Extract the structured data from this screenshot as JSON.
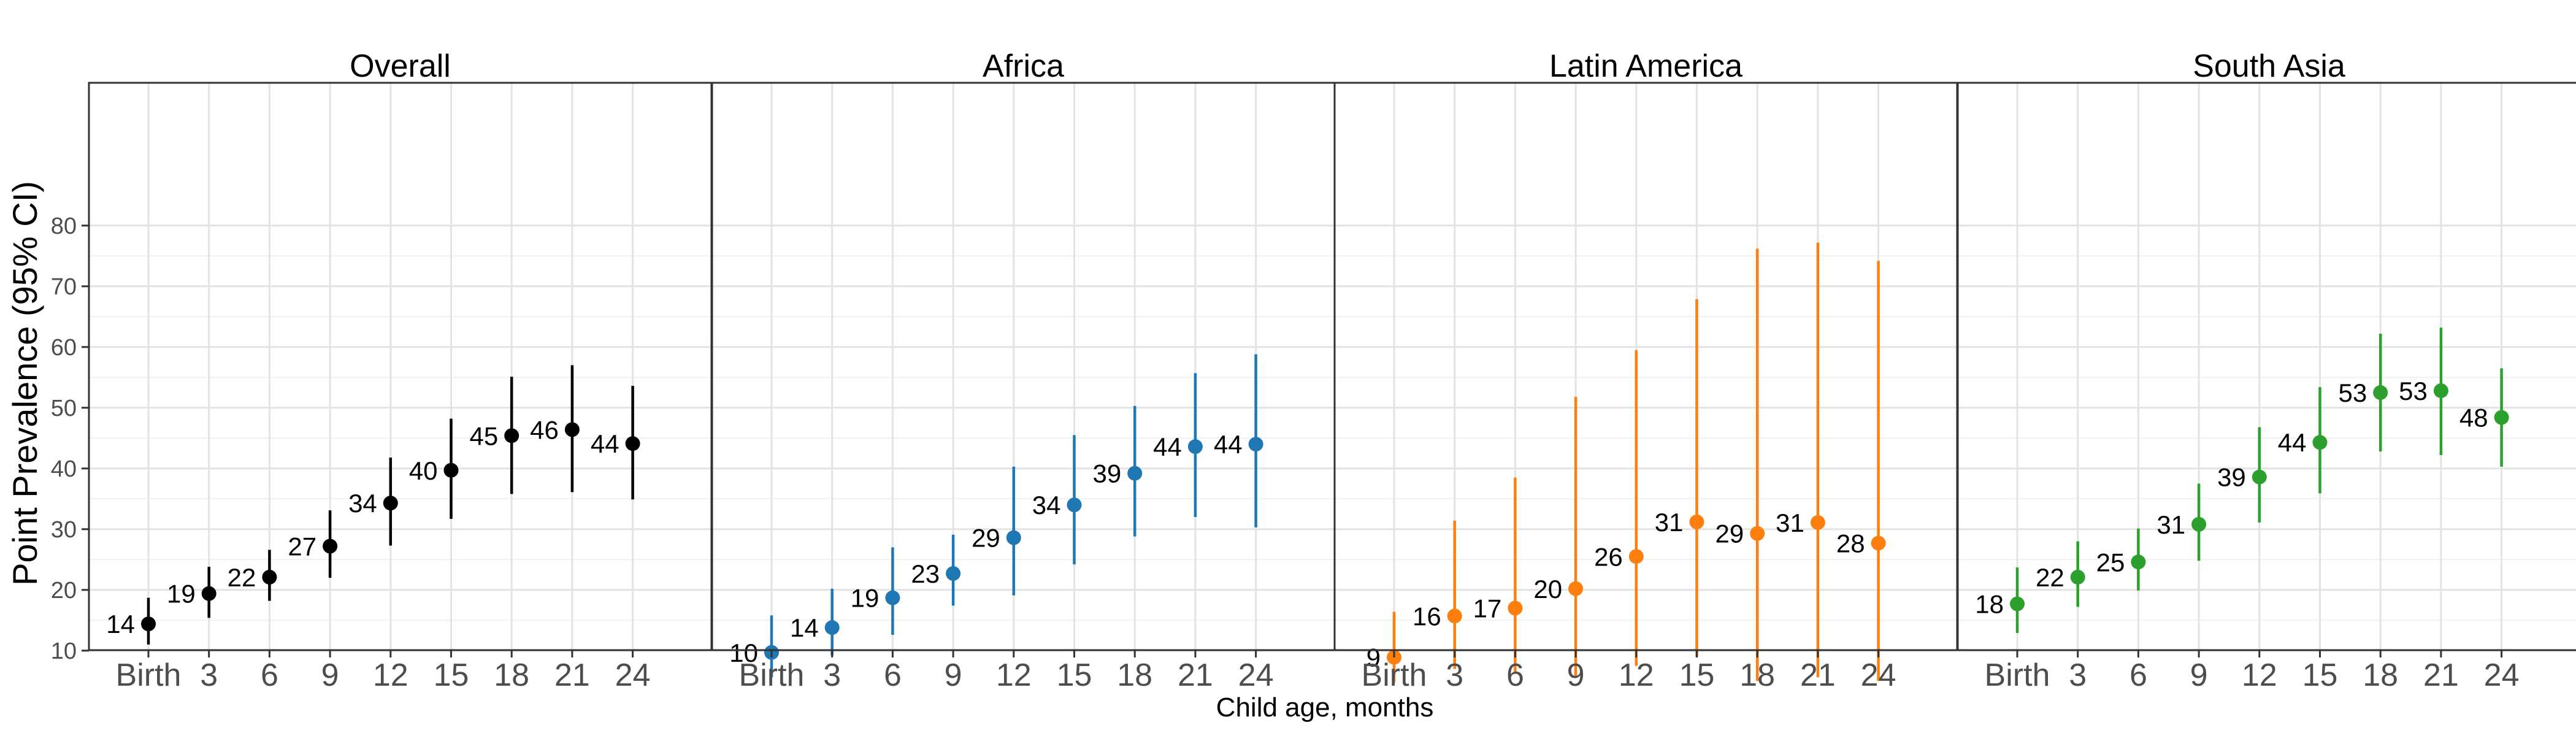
{
  "figure": {
    "ylabel": "Point Prevalence (95% CI)",
    "xlabel": "Child age, months"
  },
  "chart_data": [
    {
      "type": "scatter",
      "title": "Overall",
      "color": "#000000",
      "categories": [
        "Birth",
        "3",
        "6",
        "9",
        "12",
        "15",
        "18",
        "21",
        "24"
      ],
      "values": [
        14.4,
        19.4,
        22.1,
        27.2,
        34.3,
        39.7,
        45.4,
        46.4,
        44.1
      ],
      "ci_low": [
        11.0,
        15.4,
        18.2,
        22.0,
        27.3,
        31.7,
        35.8,
        36.1,
        34.9
      ],
      "ci_high": [
        18.7,
        23.8,
        26.6,
        33.1,
        41.8,
        48.2,
        55.1,
        57.0,
        53.6
      ],
      "data_labels": [
        "14",
        "19",
        "22",
        "27",
        "34",
        "40",
        "45",
        "46",
        "44"
      ],
      "ylim": [
        1,
        81
      ],
      "yticks": [
        10,
        20,
        30,
        40,
        50,
        60,
        70,
        80
      ],
      "grid": true
    },
    {
      "type": "scatter",
      "title": "Africa",
      "color": "#1F77B4",
      "categories": [
        "Birth",
        "3",
        "6",
        "9",
        "12",
        "15",
        "18",
        "21",
        "24"
      ],
      "values": [
        9.7,
        13.8,
        18.7,
        22.7,
        28.6,
        34.0,
        39.2,
        43.6,
        44.0
      ],
      "ci_low": [
        5.6,
        9.2,
        12.6,
        17.4,
        19.1,
        24.2,
        28.8,
        32.0,
        30.3
      ],
      "ci_high": [
        15.8,
        20.2,
        27.0,
        29.1,
        40.3,
        45.5,
        50.3,
        55.7,
        58.8
      ],
      "data_labels": [
        "10",
        "14",
        "19",
        "23",
        "29",
        "34",
        "39",
        "44",
        "44"
      ],
      "ylim": [
        1,
        81
      ],
      "yticks": [
        10,
        20,
        30,
        40,
        50,
        60,
        70,
        80
      ],
      "grid": true
    },
    {
      "type": "scatter",
      "title": "Latin America",
      "color": "#FF7F0E",
      "categories": [
        "Birth",
        "3",
        "6",
        "9",
        "12",
        "15",
        "18",
        "21",
        "24"
      ],
      "values": [
        8.9,
        15.7,
        17.0,
        20.2,
        25.5,
        31.2,
        29.3,
        31.1,
        27.7
      ],
      "ci_low": [
        4.8,
        7.0,
        6.2,
        5.6,
        7.5,
        9.0,
        5.0,
        5.6,
        5.0
      ],
      "ci_high": [
        16.4,
        31.4,
        38.5,
        51.8,
        59.5,
        67.9,
        76.2,
        77.2,
        74.2
      ],
      "data_labels": [
        "9",
        "16",
        "17",
        "20",
        "26",
        "31",
        "29",
        "31",
        "28"
      ],
      "ylim": [
        1,
        81
      ],
      "yticks": [
        10,
        20,
        30,
        40,
        50,
        60,
        70,
        80
      ],
      "grid": true
    },
    {
      "type": "scatter",
      "title": "South Asia",
      "color": "#2CA02C",
      "categories": [
        "Birth",
        "3",
        "6",
        "9",
        "12",
        "15",
        "18",
        "21",
        "24"
      ],
      "values": [
        17.7,
        22.1,
        24.6,
        30.8,
        38.6,
        44.3,
        52.5,
        52.8,
        48.4
      ],
      "ci_low": [
        12.9,
        17.2,
        19.9,
        24.8,
        31.1,
        35.9,
        42.8,
        42.2,
        40.3
      ],
      "ci_high": [
        23.7,
        28.0,
        30.1,
        37.5,
        46.8,
        53.4,
        62.2,
        63.2,
        56.5
      ],
      "data_labels": [
        "18",
        "22",
        "25",
        "31",
        "39",
        "44",
        "53",
        "53",
        "48"
      ],
      "ylim": [
        1,
        81
      ],
      "yticks": [
        10,
        20,
        30,
        40,
        50,
        60,
        70,
        80
      ],
      "grid": true
    }
  ]
}
